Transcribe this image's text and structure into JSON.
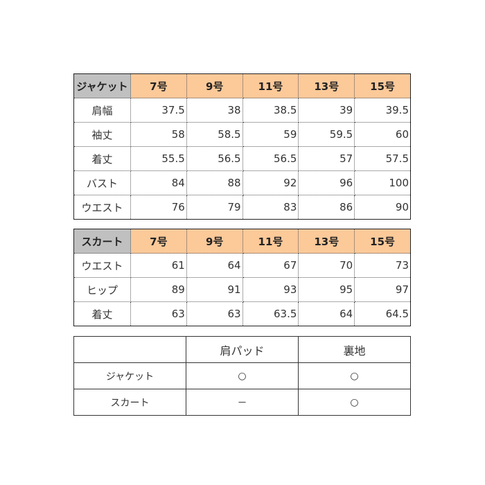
{
  "jacket_table": {
    "corner": "ジャケット",
    "sizes": [
      "7号",
      "9号",
      "11号",
      "13号",
      "15号"
    ],
    "rows": [
      {
        "label": "肩幅",
        "values": [
          "37.5",
          "38",
          "38.5",
          "39",
          "39.5"
        ]
      },
      {
        "label": "袖丈",
        "values": [
          "58",
          "58.5",
          "59",
          "59.5",
          "60"
        ]
      },
      {
        "label": "着丈",
        "values": [
          "55.5",
          "56.5",
          "56.5",
          "57",
          "57.5"
        ]
      },
      {
        "label": "バスト",
        "values": [
          "84",
          "88",
          "92",
          "96",
          "100"
        ]
      },
      {
        "label": "ウエスト",
        "values": [
          "76",
          "79",
          "83",
          "86",
          "90"
        ]
      }
    ]
  },
  "skirt_table": {
    "corner": "スカート",
    "sizes": [
      "7号",
      "9号",
      "11号",
      "13号",
      "15号"
    ],
    "rows": [
      {
        "label": "ウエスト",
        "values": [
          "61",
          "64",
          "67",
          "70",
          "73"
        ]
      },
      {
        "label": "ヒップ",
        "values": [
          "89",
          "91",
          "93",
          "95",
          "97"
        ]
      },
      {
        "label": "着丈",
        "values": [
          "63",
          "63",
          "63.5",
          "64",
          "64.5"
        ]
      }
    ]
  },
  "features_table": {
    "headers": [
      "",
      "肩パッド",
      "裏地"
    ],
    "rows": [
      {
        "label": "ジャケット",
        "values": [
          "○",
          "○"
        ]
      },
      {
        "label": "スカート",
        "values": [
          "－",
          "○"
        ]
      }
    ]
  },
  "colors": {
    "size_header": "#fcc999",
    "corner_header": "#c0c0c0"
  }
}
